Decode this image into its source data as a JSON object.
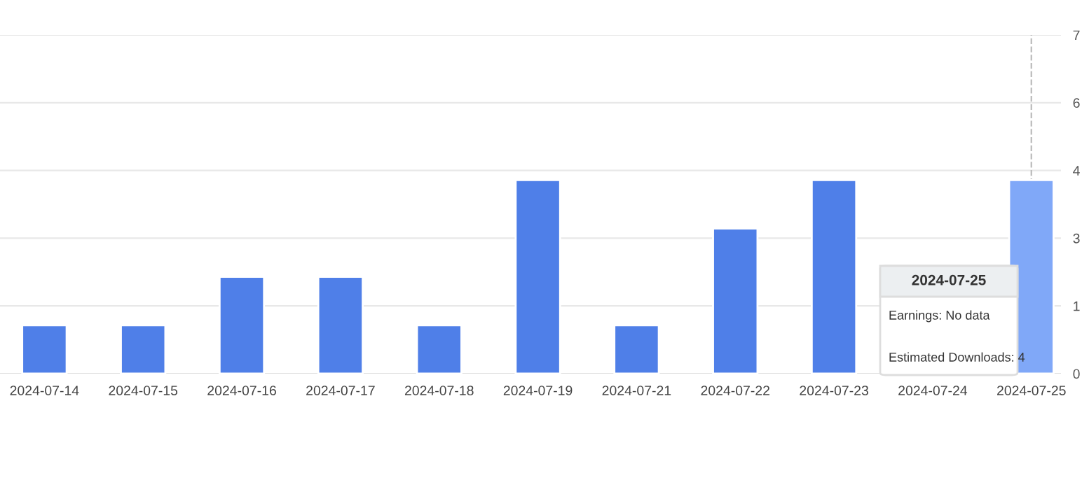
{
  "chart_data": {
    "type": "bar",
    "categories": [
      "2024-07-14",
      "2024-07-15",
      "2024-07-16",
      "2024-07-17",
      "2024-07-18",
      "2024-07-19",
      "2024-07-21",
      "2024-07-22",
      "2024-07-23",
      "2024-07-24",
      "2024-07-25"
    ],
    "values": [
      1,
      1,
      2,
      2,
      1,
      4,
      1,
      3,
      4,
      null,
      4
    ],
    "colors": [
      "#4f7fe8",
      "#4f7fe8",
      "#4f7fe8",
      "#4f7fe8",
      "#4f7fe8",
      "#4f7fe8",
      "#4f7fe8",
      "#4f7fe8",
      "#4f7fe8",
      "#4f7fe8",
      "#80a8f8"
    ],
    "ylim": [
      0,
      7
    ],
    "yticks": [
      0,
      {
        "value": 1.4,
        "label": "1"
      },
      {
        "value": 2.8,
        "label": "3"
      },
      {
        "value": 4.2,
        "label": "4"
      },
      {
        "value": 5.6,
        "label": "6"
      },
      7
    ],
    "grid": "y",
    "ref_lines": [
      {
        "axis": "x",
        "value": "2024-07-25",
        "color": "#bbbbbb",
        "line_style": "dashed"
      }
    ],
    "annotations": [
      "2024-07-25",
      "Earnings: No data",
      "Estimated Downloads: 4"
    ]
  }
}
